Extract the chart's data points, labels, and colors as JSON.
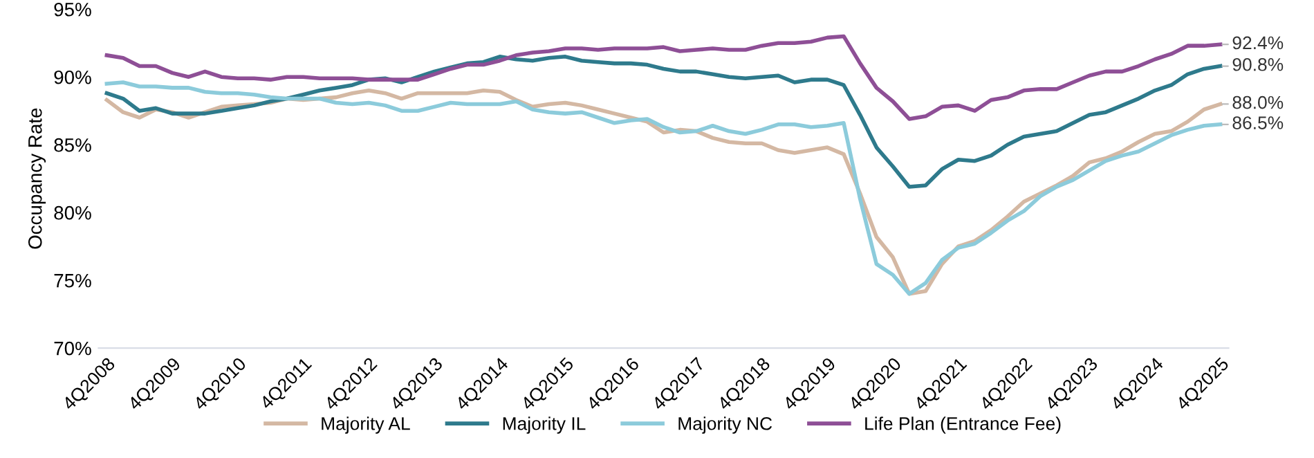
{
  "chart_data": {
    "type": "line",
    "ylabel": "Occupancy Rate",
    "categories": [
      "4Q2008",
      null,
      null,
      null,
      "4Q2009",
      null,
      null,
      null,
      "4Q2010",
      null,
      null,
      null,
      "4Q2011",
      null,
      null,
      null,
      "4Q2012",
      null,
      null,
      null,
      "4Q2013",
      null,
      null,
      null,
      "4Q2014",
      null,
      null,
      null,
      "4Q2015",
      null,
      null,
      null,
      "4Q2016",
      null,
      null,
      null,
      "4Q2017",
      null,
      null,
      null,
      "4Q2018",
      null,
      null,
      null,
      "4Q2019",
      null,
      null,
      null,
      "4Q2020",
      null,
      null,
      null,
      "4Q2021",
      null,
      null,
      null,
      "4Q2022",
      null,
      null,
      null,
      "4Q2023",
      null,
      null,
      null,
      "4Q2024",
      null,
      null,
      null,
      "4Q2025"
    ],
    "series": [
      {
        "name": "Majority AL",
        "color": "#d4b8a3",
        "values": [
          88.3,
          87.4,
          87.0,
          87.6,
          87.4,
          87.0,
          87.4,
          87.8,
          87.9,
          88.0,
          88.1,
          88.4,
          88.3,
          88.4,
          88.5,
          88.8,
          89.0,
          88.8,
          88.4,
          88.8,
          88.8,
          88.8,
          88.8,
          89.0,
          88.9,
          88.3,
          87.8,
          88.0,
          88.1,
          87.9,
          87.6,
          87.3,
          87.0,
          86.7,
          85.9,
          86.1,
          86.0,
          85.5,
          85.2,
          85.1,
          85.1,
          84.6,
          84.4,
          84.6,
          84.8,
          84.3,
          81.4,
          78.2,
          76.7,
          74.0,
          74.2,
          76.2,
          77.5,
          77.9,
          78.7,
          79.7,
          80.8,
          81.4,
          82.0,
          82.7,
          83.7,
          84.0,
          84.5,
          85.2,
          85.8,
          86.0,
          86.7,
          87.6,
          88.0
        ],
        "value_labels": [
          null,
          null,
          null,
          null,
          null,
          null,
          null,
          null,
          null,
          null,
          null,
          null,
          null,
          null,
          null,
          null,
          null,
          null,
          null,
          null,
          null,
          null,
          null,
          null,
          null,
          null,
          null,
          null,
          null,
          null,
          null,
          null,
          null,
          null,
          null,
          null,
          null,
          null,
          null,
          null,
          null,
          null,
          null,
          null,
          null,
          null,
          null,
          null,
          null,
          null,
          null,
          null,
          null,
          null,
          null,
          null,
          null,
          null,
          null,
          null,
          null,
          null,
          null,
          null,
          null,
          null,
          null,
          null,
          "88.0%"
        ]
      },
      {
        "name": "Majority IL",
        "color": "#2e7a8c",
        "values": [
          88.8,
          88.4,
          87.5,
          87.7,
          87.3,
          87.3,
          87.3,
          87.5,
          87.7,
          87.9,
          88.2,
          88.4,
          88.7,
          89.0,
          89.2,
          89.4,
          89.8,
          89.9,
          89.6,
          90.0,
          90.4,
          90.7,
          91.0,
          91.1,
          91.5,
          91.3,
          91.2,
          91.4,
          91.5,
          91.2,
          91.1,
          91.0,
          91.0,
          90.9,
          90.6,
          90.4,
          90.4,
          90.2,
          90.0,
          89.9,
          90.0,
          90.1,
          89.6,
          89.8,
          89.8,
          89.4,
          87.2,
          84.8,
          83.4,
          81.9,
          82.0,
          83.2,
          83.9,
          83.8,
          84.2,
          85.0,
          85.6,
          85.8,
          86.0,
          86.6,
          87.2,
          87.4,
          87.9,
          88.4,
          89.0,
          89.4,
          90.2,
          90.6,
          90.8
        ],
        "value_labels": [
          null,
          null,
          null,
          null,
          null,
          null,
          null,
          null,
          null,
          null,
          null,
          null,
          null,
          null,
          null,
          null,
          null,
          null,
          null,
          null,
          null,
          null,
          null,
          null,
          null,
          null,
          null,
          null,
          null,
          null,
          null,
          null,
          null,
          null,
          null,
          null,
          null,
          null,
          null,
          null,
          null,
          null,
          null,
          null,
          null,
          null,
          null,
          null,
          null,
          null,
          null,
          null,
          null,
          null,
          null,
          null,
          null,
          null,
          null,
          null,
          null,
          null,
          null,
          null,
          null,
          null,
          null,
          null,
          "90.8%"
        ]
      },
      {
        "name": "Majority NC",
        "color": "#8ccbdb",
        "values": [
          89.5,
          89.6,
          89.3,
          89.3,
          89.2,
          89.2,
          88.9,
          88.8,
          88.8,
          88.7,
          88.5,
          88.4,
          88.4,
          88.4,
          88.1,
          88.0,
          88.1,
          87.9,
          87.5,
          87.5,
          87.8,
          88.1,
          88.0,
          88.0,
          88.0,
          88.2,
          87.6,
          87.4,
          87.3,
          87.4,
          87.0,
          86.6,
          86.8,
          86.9,
          86.3,
          85.9,
          86.0,
          86.4,
          86.0,
          85.8,
          86.1,
          86.5,
          86.5,
          86.3,
          86.4,
          86.6,
          81.0,
          76.2,
          75.4,
          74.0,
          74.8,
          76.5,
          77.4,
          77.7,
          78.5,
          79.4,
          80.1,
          81.2,
          81.9,
          82.4,
          83.1,
          83.8,
          84.2,
          84.5,
          85.1,
          85.7,
          86.1,
          86.4,
          86.5
        ],
        "value_labels": [
          null,
          null,
          null,
          null,
          null,
          null,
          null,
          null,
          null,
          null,
          null,
          null,
          null,
          null,
          null,
          null,
          null,
          null,
          null,
          null,
          null,
          null,
          null,
          null,
          null,
          null,
          null,
          null,
          null,
          null,
          null,
          null,
          null,
          null,
          null,
          null,
          null,
          null,
          null,
          null,
          null,
          null,
          null,
          null,
          null,
          null,
          null,
          null,
          null,
          null,
          null,
          null,
          null,
          null,
          null,
          null,
          null,
          null,
          null,
          null,
          null,
          null,
          null,
          null,
          null,
          null,
          null,
          null,
          "86.5%"
        ]
      },
      {
        "name": "Life Plan (Entrance Fee)",
        "color": "#8e4f96",
        "values": [
          91.6,
          91.4,
          90.8,
          90.8,
          90.3,
          90.0,
          90.4,
          90.0,
          89.9,
          89.9,
          89.8,
          90.0,
          90.0,
          89.9,
          89.9,
          89.9,
          89.8,
          89.8,
          89.8,
          89.8,
          90.2,
          90.6,
          90.9,
          90.9,
          91.2,
          91.6,
          91.8,
          91.9,
          92.1,
          92.1,
          92.0,
          92.1,
          92.1,
          92.1,
          92.2,
          91.9,
          92.0,
          92.1,
          92.0,
          92.0,
          92.3,
          92.5,
          92.5,
          92.6,
          92.9,
          93.0,
          91.0,
          89.2,
          88.2,
          86.9,
          87.1,
          87.8,
          87.9,
          87.5,
          88.3,
          88.5,
          89.0,
          89.1,
          89.1,
          89.6,
          90.1,
          90.4,
          90.4,
          90.8,
          91.3,
          91.7,
          92.3,
          92.3,
          92.4
        ],
        "value_labels": [
          null,
          null,
          null,
          null,
          null,
          null,
          null,
          null,
          null,
          null,
          null,
          null,
          null,
          null,
          null,
          null,
          null,
          null,
          null,
          null,
          null,
          null,
          null,
          null,
          null,
          null,
          null,
          null,
          null,
          null,
          null,
          null,
          null,
          null,
          null,
          null,
          null,
          null,
          null,
          null,
          null,
          null,
          null,
          null,
          null,
          null,
          null,
          null,
          null,
          null,
          null,
          null,
          null,
          null,
          null,
          null,
          null,
          null,
          null,
          null,
          null,
          null,
          null,
          null,
          null,
          null,
          null,
          null,
          "92.4%"
        ]
      }
    ],
    "ylim": [
      70,
      95
    ],
    "yticks": [
      {
        "value": 70,
        "label": "70%"
      },
      {
        "value": 75,
        "label": "75%"
      },
      {
        "value": 80,
        "label": "80%"
      },
      {
        "value": 85,
        "label": "85%"
      },
      {
        "value": 90,
        "label": "90%"
      },
      {
        "value": 95,
        "label": "95%"
      }
    ],
    "grid": false,
    "legend": "bottom",
    "marker": "none",
    "line_style": "solid"
  }
}
